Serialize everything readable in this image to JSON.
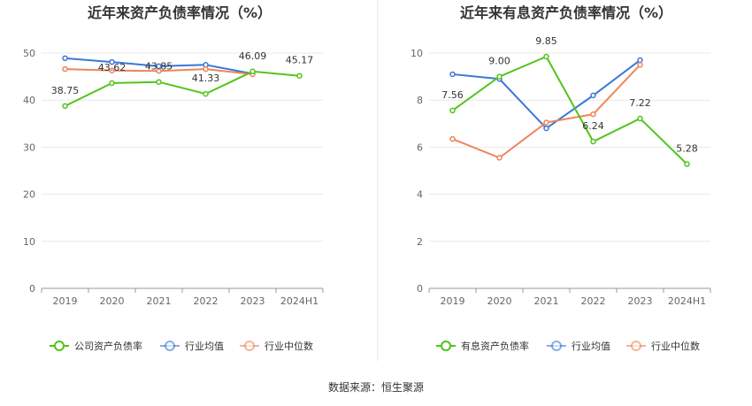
{
  "source_text": "数据来源：恒生聚源",
  "chart_data": [
    {
      "type": "line",
      "title": "近年来资产负债率情况（%）",
      "categories": [
        "2019",
        "2020",
        "2021",
        "2022",
        "2023",
        "2024H1"
      ],
      "ylim": [
        0,
        50
      ],
      "yticks": [
        0,
        10,
        20,
        30,
        40,
        50
      ],
      "grid": true,
      "legend_position": "bottom",
      "series": [
        {
          "name": "公司资产负债率",
          "color": "#52c41a",
          "values": [
            38.75,
            43.62,
            43.85,
            41.33,
            46.09,
            45.17
          ],
          "labels": [
            "38.75",
            "43.62",
            "43.85",
            "41.33",
            "46.09",
            "45.17"
          ]
        },
        {
          "name": "行业均值",
          "color": "#3a78d6",
          "values": [
            48.9,
            48.1,
            47.2,
            47.5,
            45.6,
            null
          ]
        },
        {
          "name": "行业中位数",
          "color": "#f0845a",
          "values": [
            46.6,
            46.3,
            46.2,
            46.6,
            45.5,
            null
          ]
        }
      ]
    },
    {
      "type": "line",
      "title": "近年来有息资产负债率情况（%）",
      "categories": [
        "2019",
        "2020",
        "2021",
        "2022",
        "2023",
        "2024H1"
      ],
      "ylim": [
        0,
        10
      ],
      "yticks": [
        0,
        2,
        4,
        6,
        8,
        10
      ],
      "grid": true,
      "legend_position": "bottom",
      "series": [
        {
          "name": "有息资产负债率",
          "color": "#52c41a",
          "values": [
            7.56,
            9.0,
            9.85,
            6.24,
            7.22,
            5.28
          ],
          "labels": [
            "7.56",
            "9.00",
            "9.85",
            "6.24",
            "7.22",
            "5.28"
          ]
        },
        {
          "name": "行业均值",
          "color": "#3a78d6",
          "values": [
            9.1,
            8.9,
            6.8,
            8.2,
            9.7,
            null
          ]
        },
        {
          "name": "行业中位数",
          "color": "#f0845a",
          "values": [
            6.35,
            5.55,
            7.05,
            7.4,
            9.5,
            null
          ]
        }
      ]
    }
  ]
}
